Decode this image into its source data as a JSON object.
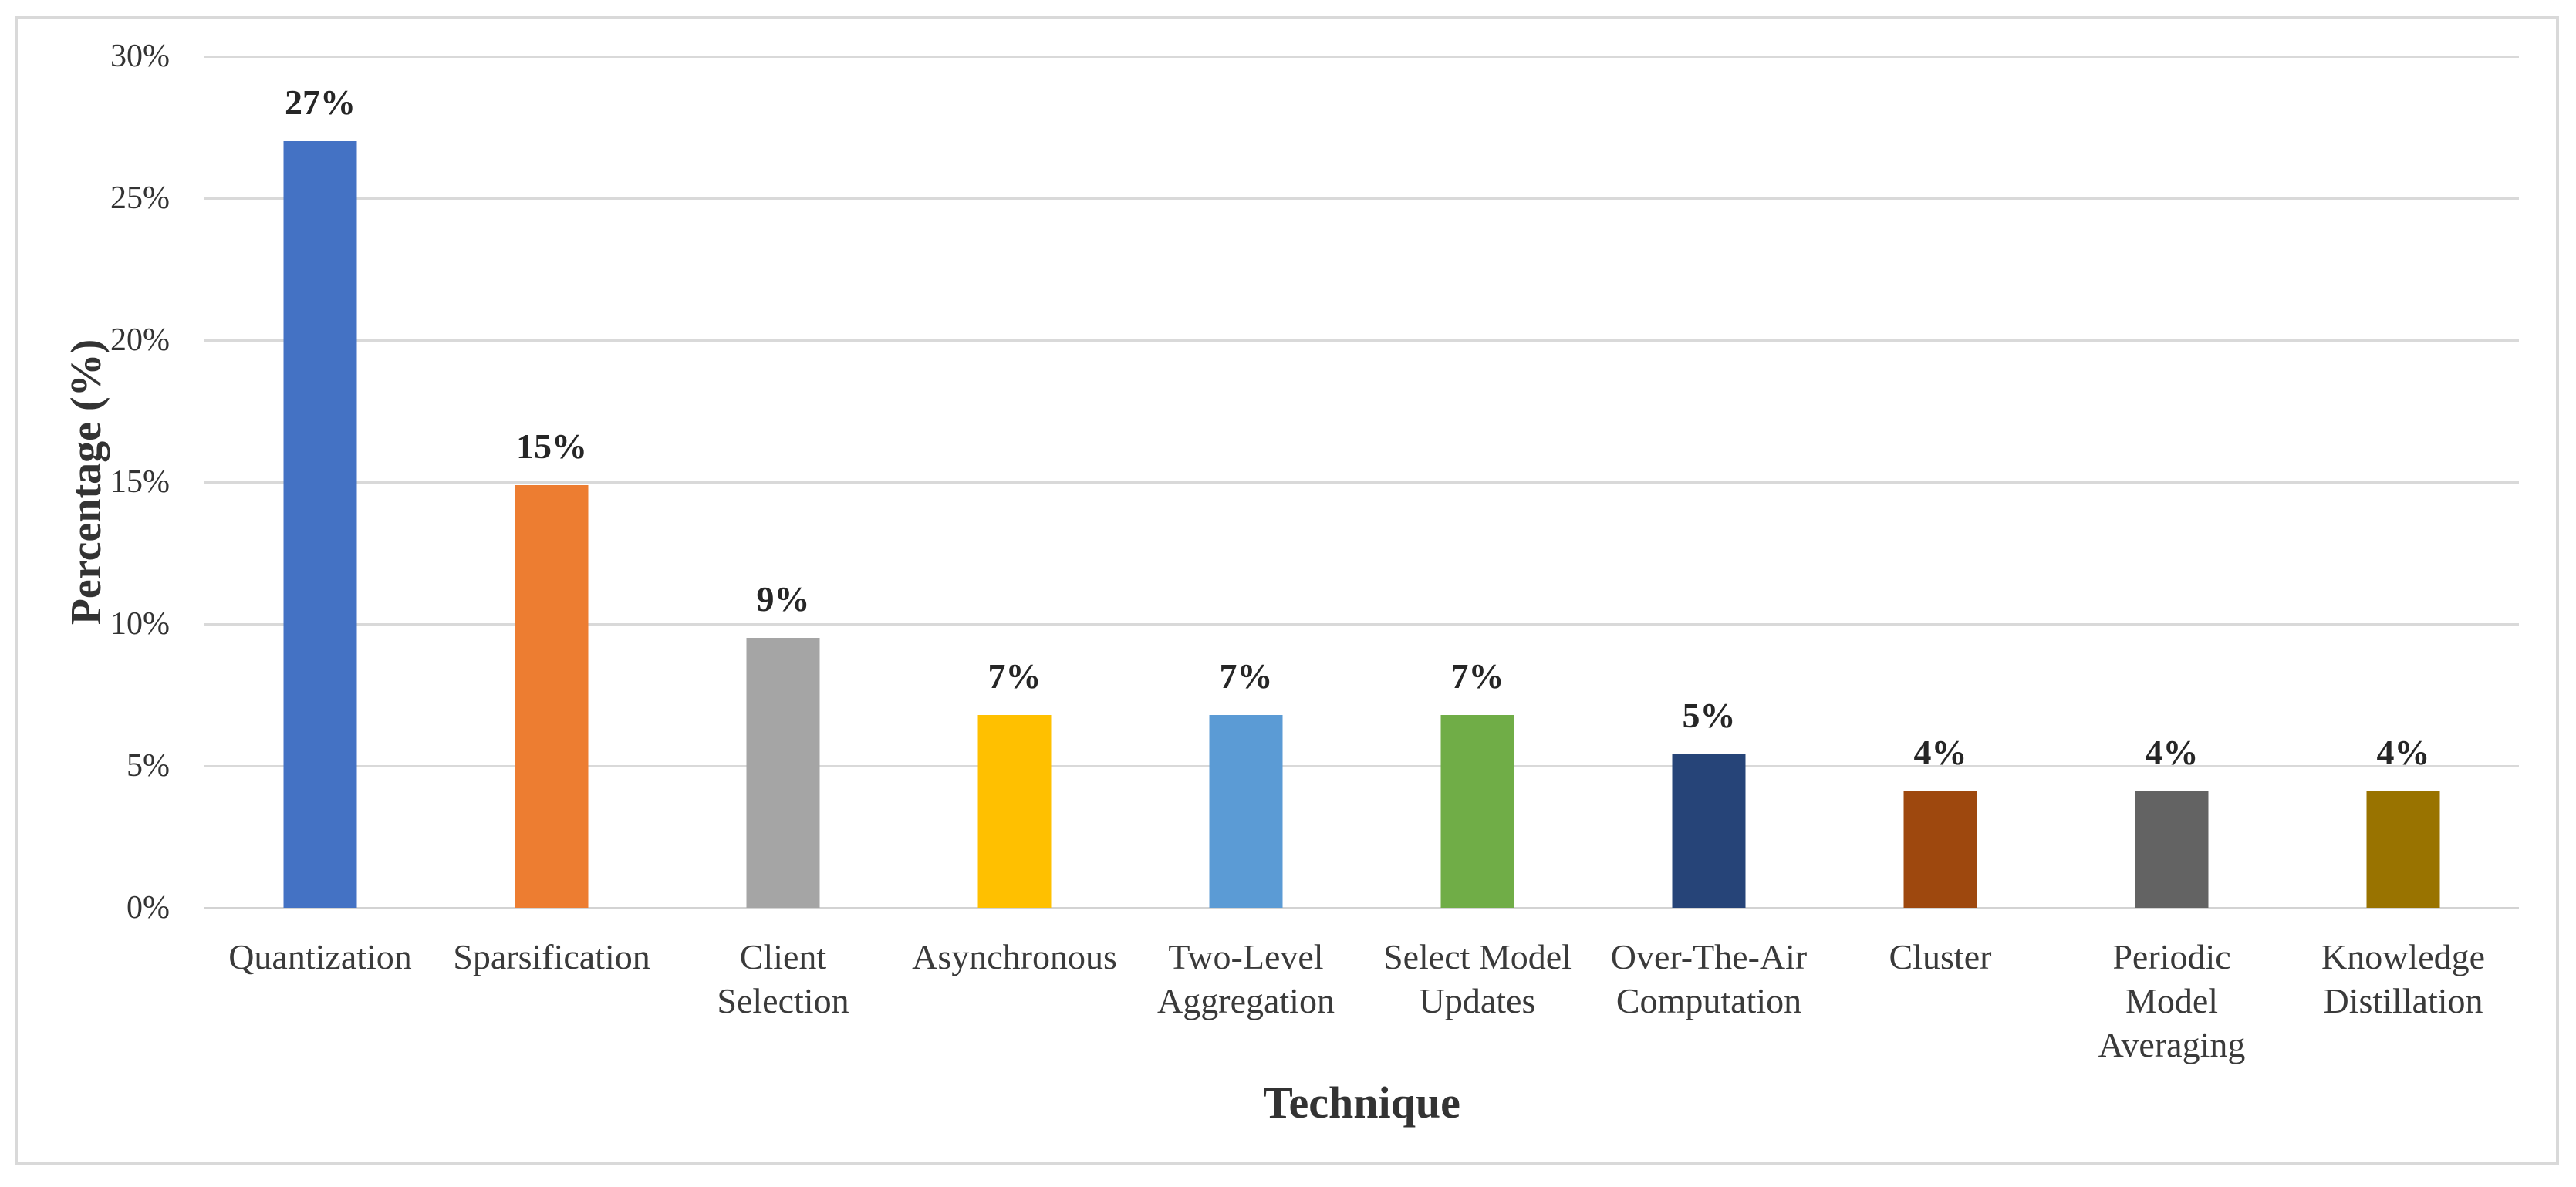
{
  "chart_data": {
    "type": "bar",
    "title": "",
    "xlabel": "Technique",
    "ylabel": "Percentage (%)",
    "ylim": [
      0,
      30
    ],
    "grid": true,
    "legend": false,
    "categories": [
      "Quantization",
      "Sparsification",
      "Client\nSelection",
      "Asynchronous",
      "Two-Level\nAggregation",
      "Select Model\nUpdates",
      "Over-The-Air\nComputation",
      "Cluster",
      "Periodic\nModel\nAveraging",
      "Knowledge\nDistillation"
    ],
    "values": [
      27.0,
      14.9,
      9.5,
      6.8,
      6.8,
      6.8,
      5.4,
      4.1,
      4.1,
      4.1
    ],
    "bar_labels": [
      "27%",
      "15%",
      "9%",
      "7%",
      "7%",
      "7%",
      "5%",
      "4%",
      "4%",
      "4%"
    ],
    "bar_colors": [
      "#4472C4",
      "#ED7D31",
      "#A5A5A5",
      "#FFC000",
      "#5B9BD5",
      "#70AD47",
      "#264478",
      "#9E480E",
      "#636363",
      "#997300"
    ],
    "yticks": [
      {
        "label": "0%",
        "value": 0
      },
      {
        "label": "5%",
        "value": 5
      },
      {
        "label": "10%",
        "value": 10
      },
      {
        "label": "15%",
        "value": 15
      },
      {
        "label": "20%",
        "value": 20
      },
      {
        "label": "25%",
        "value": 25
      },
      {
        "label": "30%",
        "value": 30
      }
    ]
  },
  "style": {
    "gridline_color": "#D9D9D9",
    "axis_line_color": "#D3D3D3",
    "frame_color": "#D9D9D9"
  }
}
